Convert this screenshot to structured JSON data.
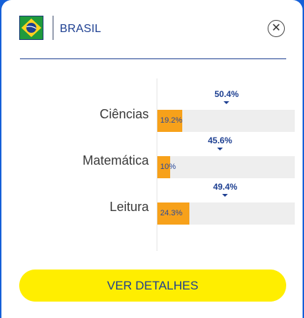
{
  "header": {
    "country": "BRASIL",
    "flag_icon": "brazil-flag-icon",
    "close_icon": "close-icon"
  },
  "colors": {
    "bar": "#f7a11a",
    "track": "#eeeeee",
    "accent": "#1d3f91",
    "button": "#ffee00"
  },
  "chart_data": {
    "type": "bar",
    "orientation": "horizontal",
    "categories": [
      "Ciências",
      "Matemática",
      "Leitura"
    ],
    "series": [
      {
        "values": [
          19.2,
          10,
          24.3
        ],
        "labels": [
          "19.2%",
          "10%",
          "24.3%"
        ]
      },
      {
        "values": [
          50.4,
          45.6,
          49.4
        ],
        "labels": [
          "50.4%",
          "45.6%",
          "49.4%"
        ]
      }
    ],
    "xlim": [
      0,
      100
    ]
  },
  "button": {
    "label": "VER DETALHES"
  }
}
